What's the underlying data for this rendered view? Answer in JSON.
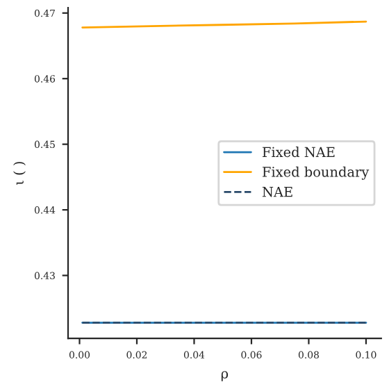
{
  "chart_data": {
    "type": "line",
    "xlabel": "ρ",
    "ylabel": "ι ( )",
    "x": [
      0.001,
      0.025,
      0.05,
      0.075,
      0.1
    ],
    "series": [
      {
        "name": "Fixed NAE",
        "color": "#1f77b4",
        "values": [
          0.4228,
          0.4228,
          0.4228,
          0.4228,
          0.4228
        ]
      },
      {
        "name": "Fixed boundary",
        "color": "#ffa500",
        "values": [
          0.4678,
          0.468,
          0.4682,
          0.4684,
          0.4687
        ]
      },
      {
        "name": "NAE",
        "color": "#2a4a6a",
        "line_style": "dashed",
        "values": [
          0.4228,
          0.4228,
          0.4228,
          0.4228,
          0.4228
        ]
      }
    ],
    "xlim": [
      -0.004,
      0.1053
    ],
    "ylim": [
      0.4204,
      0.4708
    ],
    "xticks": [
      {
        "value": 0.0,
        "label": "0.00"
      },
      {
        "value": 0.02,
        "label": "0.02"
      },
      {
        "value": 0.04,
        "label": "0.04"
      },
      {
        "value": 0.06,
        "label": "0.06"
      },
      {
        "value": 0.08,
        "label": "0.08"
      },
      {
        "value": 0.1,
        "label": "0.10"
      }
    ],
    "yticks": [
      {
        "value": 0.43,
        "label": "0.43"
      },
      {
        "value": 0.44,
        "label": "0.44"
      },
      {
        "value": 0.45,
        "label": "0.45"
      },
      {
        "value": 0.46,
        "label": "0.46"
      },
      {
        "value": 0.47,
        "label": "0.47"
      }
    ],
    "grid": false,
    "legend": "right"
  }
}
